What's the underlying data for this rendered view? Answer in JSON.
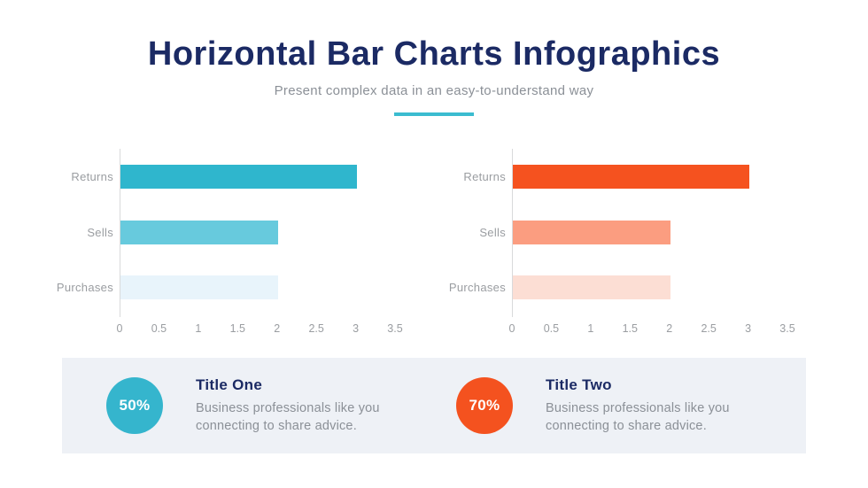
{
  "header": {
    "title": "Horizontal Bar Charts Infographics",
    "subtitle": "Present complex data in an easy-to-understand way"
  },
  "theme": {
    "title_color": "#1b2a64",
    "subtitle_color": "#8b9097",
    "underline_color": "#3bbcd0",
    "axis_color": "#d9dadb",
    "label_color": "#9a9da1",
    "panel_bg": "#eef1f6",
    "background": "#ffffff"
  },
  "chart_data": [
    {
      "type": "bar",
      "orientation": "horizontal",
      "title": "",
      "categories": [
        "Returns",
        "Sells",
        "Purchases"
      ],
      "values": [
        3,
        2,
        2
      ],
      "bar_colors": [
        "#2fb6cd",
        "#67cadd",
        "#e8f4fb"
      ],
      "xlim": [
        0,
        3.5
      ],
      "xticks": [
        0,
        0.5,
        1,
        1.5,
        2,
        2.5,
        3,
        3.5
      ],
      "xlabel": "",
      "ylabel": "",
      "grid": false,
      "legend": "none"
    },
    {
      "type": "bar",
      "orientation": "horizontal",
      "title": "",
      "categories": [
        "Returns",
        "Sells",
        "Purchases"
      ],
      "values": [
        3,
        2,
        2
      ],
      "bar_colors": [
        "#f5521f",
        "#fb9d80",
        "#fcded4"
      ],
      "xlim": [
        0,
        3.5
      ],
      "xticks": [
        0,
        0.5,
        1,
        1.5,
        2,
        2.5,
        3,
        3.5
      ],
      "xlabel": "",
      "ylabel": "",
      "grid": false,
      "legend": "none"
    }
  ],
  "stats": [
    {
      "percent": "50%",
      "circle_color": "#35b5cd",
      "title": "Title One",
      "description": "Business professionals like you connecting to share advice."
    },
    {
      "percent": "70%",
      "circle_color": "#f4521f",
      "title": "Title Two",
      "description": "Business professionals like you connecting to share advice."
    }
  ]
}
